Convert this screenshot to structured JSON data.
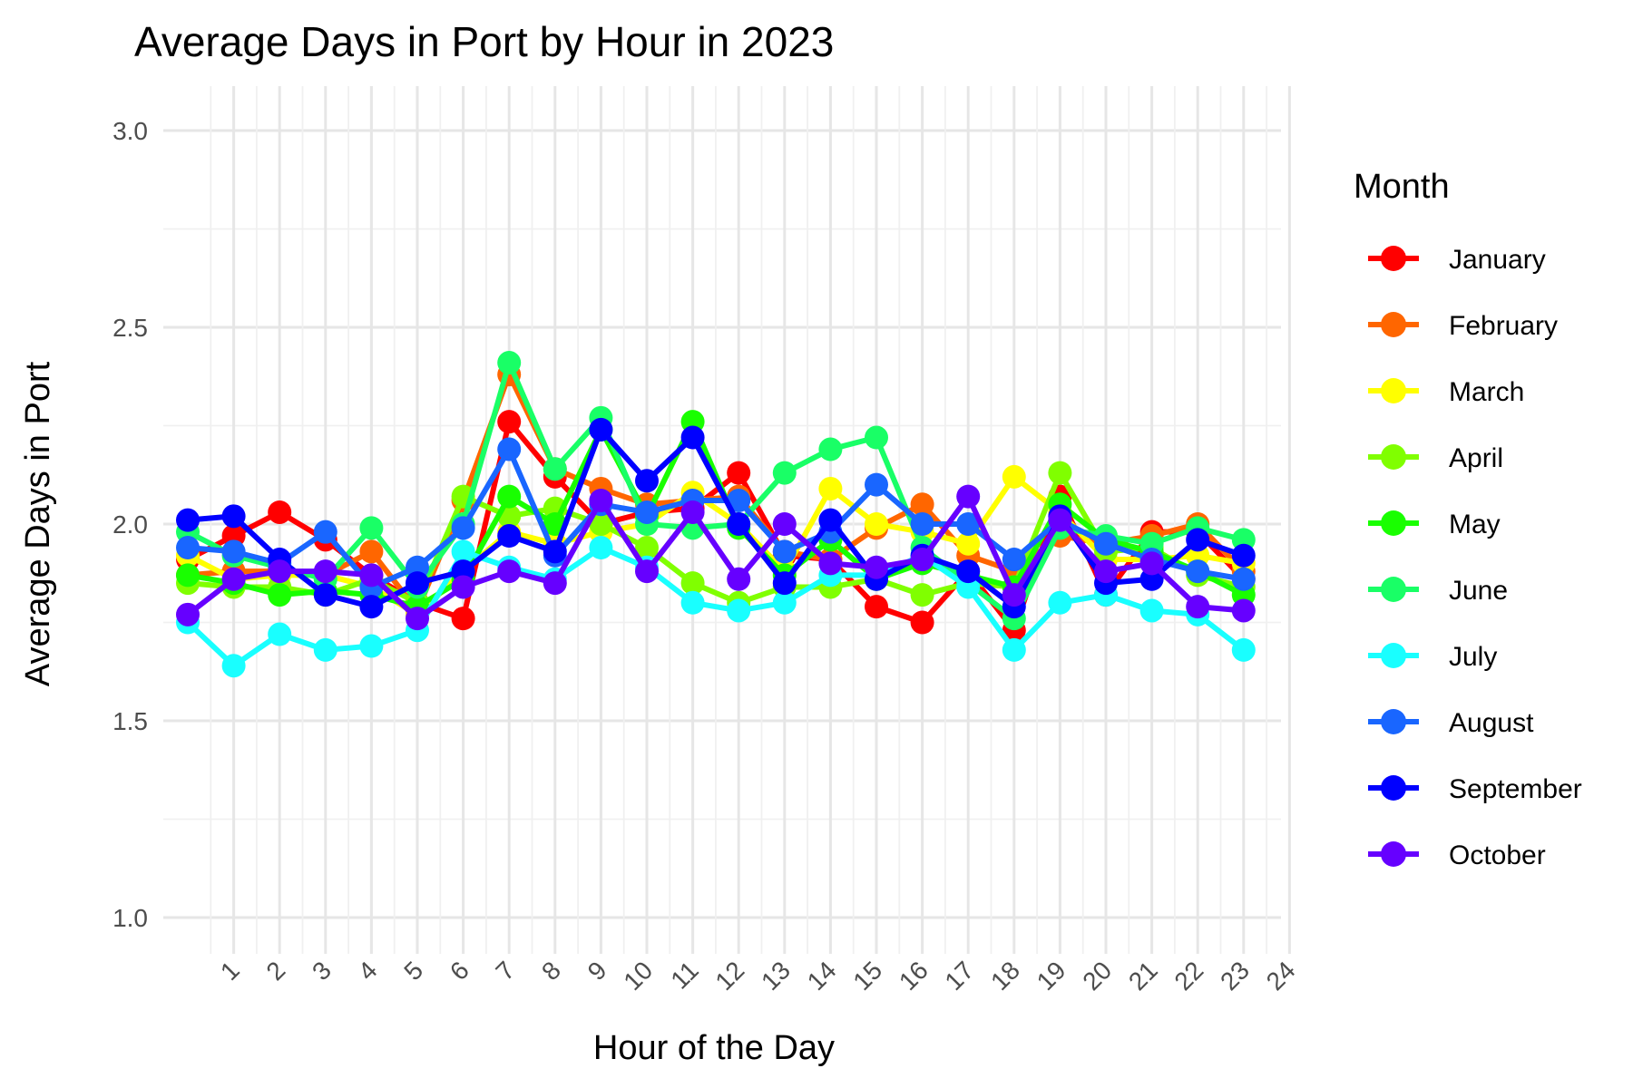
{
  "chart_data": {
    "type": "line",
    "title": "Average Days in Port by Hour in 2023",
    "xlabel": "Hour of the Day",
    "ylabel": "Average Days in Port",
    "xlim": [
      0,
      24
    ],
    "ylim": [
      1.0,
      3.0
    ],
    "x_ticks": [
      1,
      2,
      3,
      4,
      5,
      6,
      7,
      8,
      9,
      10,
      11,
      12,
      13,
      14,
      15,
      16,
      17,
      18,
      19,
      20,
      21,
      22,
      23,
      24
    ],
    "y_ticks": [
      1.0,
      1.5,
      2.0,
      2.5,
      3.0
    ],
    "y_tick_labels": [
      "1.0",
      "1.5",
      "2.0",
      "2.5",
      "3.0"
    ],
    "grid": true,
    "legend": {
      "title": "Month",
      "position": "right"
    },
    "x": [
      0,
      1,
      2,
      3,
      4,
      5,
      6,
      7,
      8,
      9,
      10,
      11,
      12,
      13,
      14,
      15,
      16,
      17,
      18,
      19,
      20,
      21,
      22,
      23
    ],
    "series": [
      {
        "name": "January",
        "color": "#FF0000",
        "values": [
          1.91,
          1.97,
          2.03,
          1.96,
          1.87,
          1.8,
          1.76,
          2.26,
          2.12,
          2.0,
          2.03,
          2.04,
          2.13,
          1.92,
          1.91,
          1.79,
          1.75,
          1.88,
          1.73,
          2.07,
          1.82,
          1.98,
          1.98,
          1.86
        ]
      },
      {
        "name": "February",
        "color": "#FF6600",
        "values": [
          1.87,
          1.88,
          1.88,
          1.87,
          1.93,
          1.78,
          2.06,
          2.38,
          2.14,
          2.09,
          2.05,
          2.06,
          2.07,
          1.93,
          1.91,
          1.99,
          2.05,
          1.92,
          1.88,
          1.97,
          1.95,
          1.97,
          2.0,
          1.88
        ]
      },
      {
        "name": "March",
        "color": "#FFFF00",
        "values": [
          1.92,
          1.86,
          1.87,
          1.87,
          1.84,
          1.77,
          1.88,
          1.98,
          1.95,
          1.98,
          2.0,
          2.08,
          2.0,
          1.88,
          2.09,
          2.0,
          1.98,
          1.95,
          2.12,
          2.03,
          1.91,
          1.91,
          1.92,
          1.9
        ]
      },
      {
        "name": "April",
        "color": "#80FF00",
        "values": [
          1.85,
          1.84,
          1.84,
          1.82,
          1.86,
          1.8,
          2.07,
          2.02,
          2.04,
          2.0,
          1.94,
          1.85,
          1.8,
          1.84,
          1.84,
          1.86,
          1.82,
          1.85,
          1.84,
          2.13,
          1.93,
          1.94,
          1.87,
          1.84
        ]
      },
      {
        "name": "May",
        "color": "#19FF00",
        "values": [
          1.87,
          1.85,
          1.82,
          1.83,
          1.82,
          1.79,
          1.86,
          2.07,
          2.0,
          2.24,
          2.02,
          2.26,
          1.99,
          1.87,
          1.96,
          1.86,
          1.9,
          1.87,
          1.84,
          2.05,
          1.96,
          1.93,
          1.88,
          1.82
        ]
      },
      {
        "name": "June",
        "color": "#19FF66",
        "values": [
          1.98,
          1.92,
          1.89,
          1.86,
          1.99,
          1.84,
          2.0,
          2.41,
          2.14,
          2.27,
          2.0,
          1.99,
          2.0,
          2.13,
          2.19,
          2.22,
          1.94,
          1.85,
          1.76,
          1.99,
          1.97,
          1.95,
          1.99,
          1.96
        ]
      },
      {
        "name": "July",
        "color": "#19FFFF",
        "values": [
          1.75,
          1.64,
          1.72,
          1.68,
          1.69,
          1.73,
          1.93,
          1.89,
          1.86,
          1.94,
          1.89,
          1.8,
          1.78,
          1.8,
          1.87,
          1.87,
          1.92,
          1.84,
          1.68,
          1.8,
          1.82,
          1.78,
          1.77,
          1.68
        ]
      },
      {
        "name": "August",
        "color": "#1966FF",
        "values": [
          1.94,
          1.93,
          1.9,
          1.98,
          1.84,
          1.89,
          1.99,
          2.19,
          1.92,
          2.05,
          2.03,
          2.06,
          2.06,
          1.93,
          1.98,
          2.1,
          2.0,
          2.0,
          1.91,
          2.01,
          1.95,
          1.91,
          1.88,
          1.86
        ]
      },
      {
        "name": "September",
        "color": "#0000FF",
        "values": [
          2.01,
          2.02,
          1.91,
          1.82,
          1.79,
          1.85,
          1.88,
          1.97,
          1.93,
          2.24,
          2.11,
          2.22,
          2.0,
          1.85,
          2.01,
          1.86,
          1.92,
          1.88,
          1.79,
          2.02,
          1.85,
          1.86,
          1.96,
          1.92
        ]
      },
      {
        "name": "October",
        "color": "#6600FF",
        "values": [
          1.77,
          1.86,
          1.88,
          1.88,
          1.87,
          1.76,
          1.84,
          1.88,
          1.85,
          2.06,
          1.88,
          2.03,
          1.86,
          2.0,
          1.9,
          1.89,
          1.91,
          2.07,
          1.82,
          2.01,
          1.88,
          1.9,
          1.79,
          1.78
        ]
      }
    ]
  }
}
